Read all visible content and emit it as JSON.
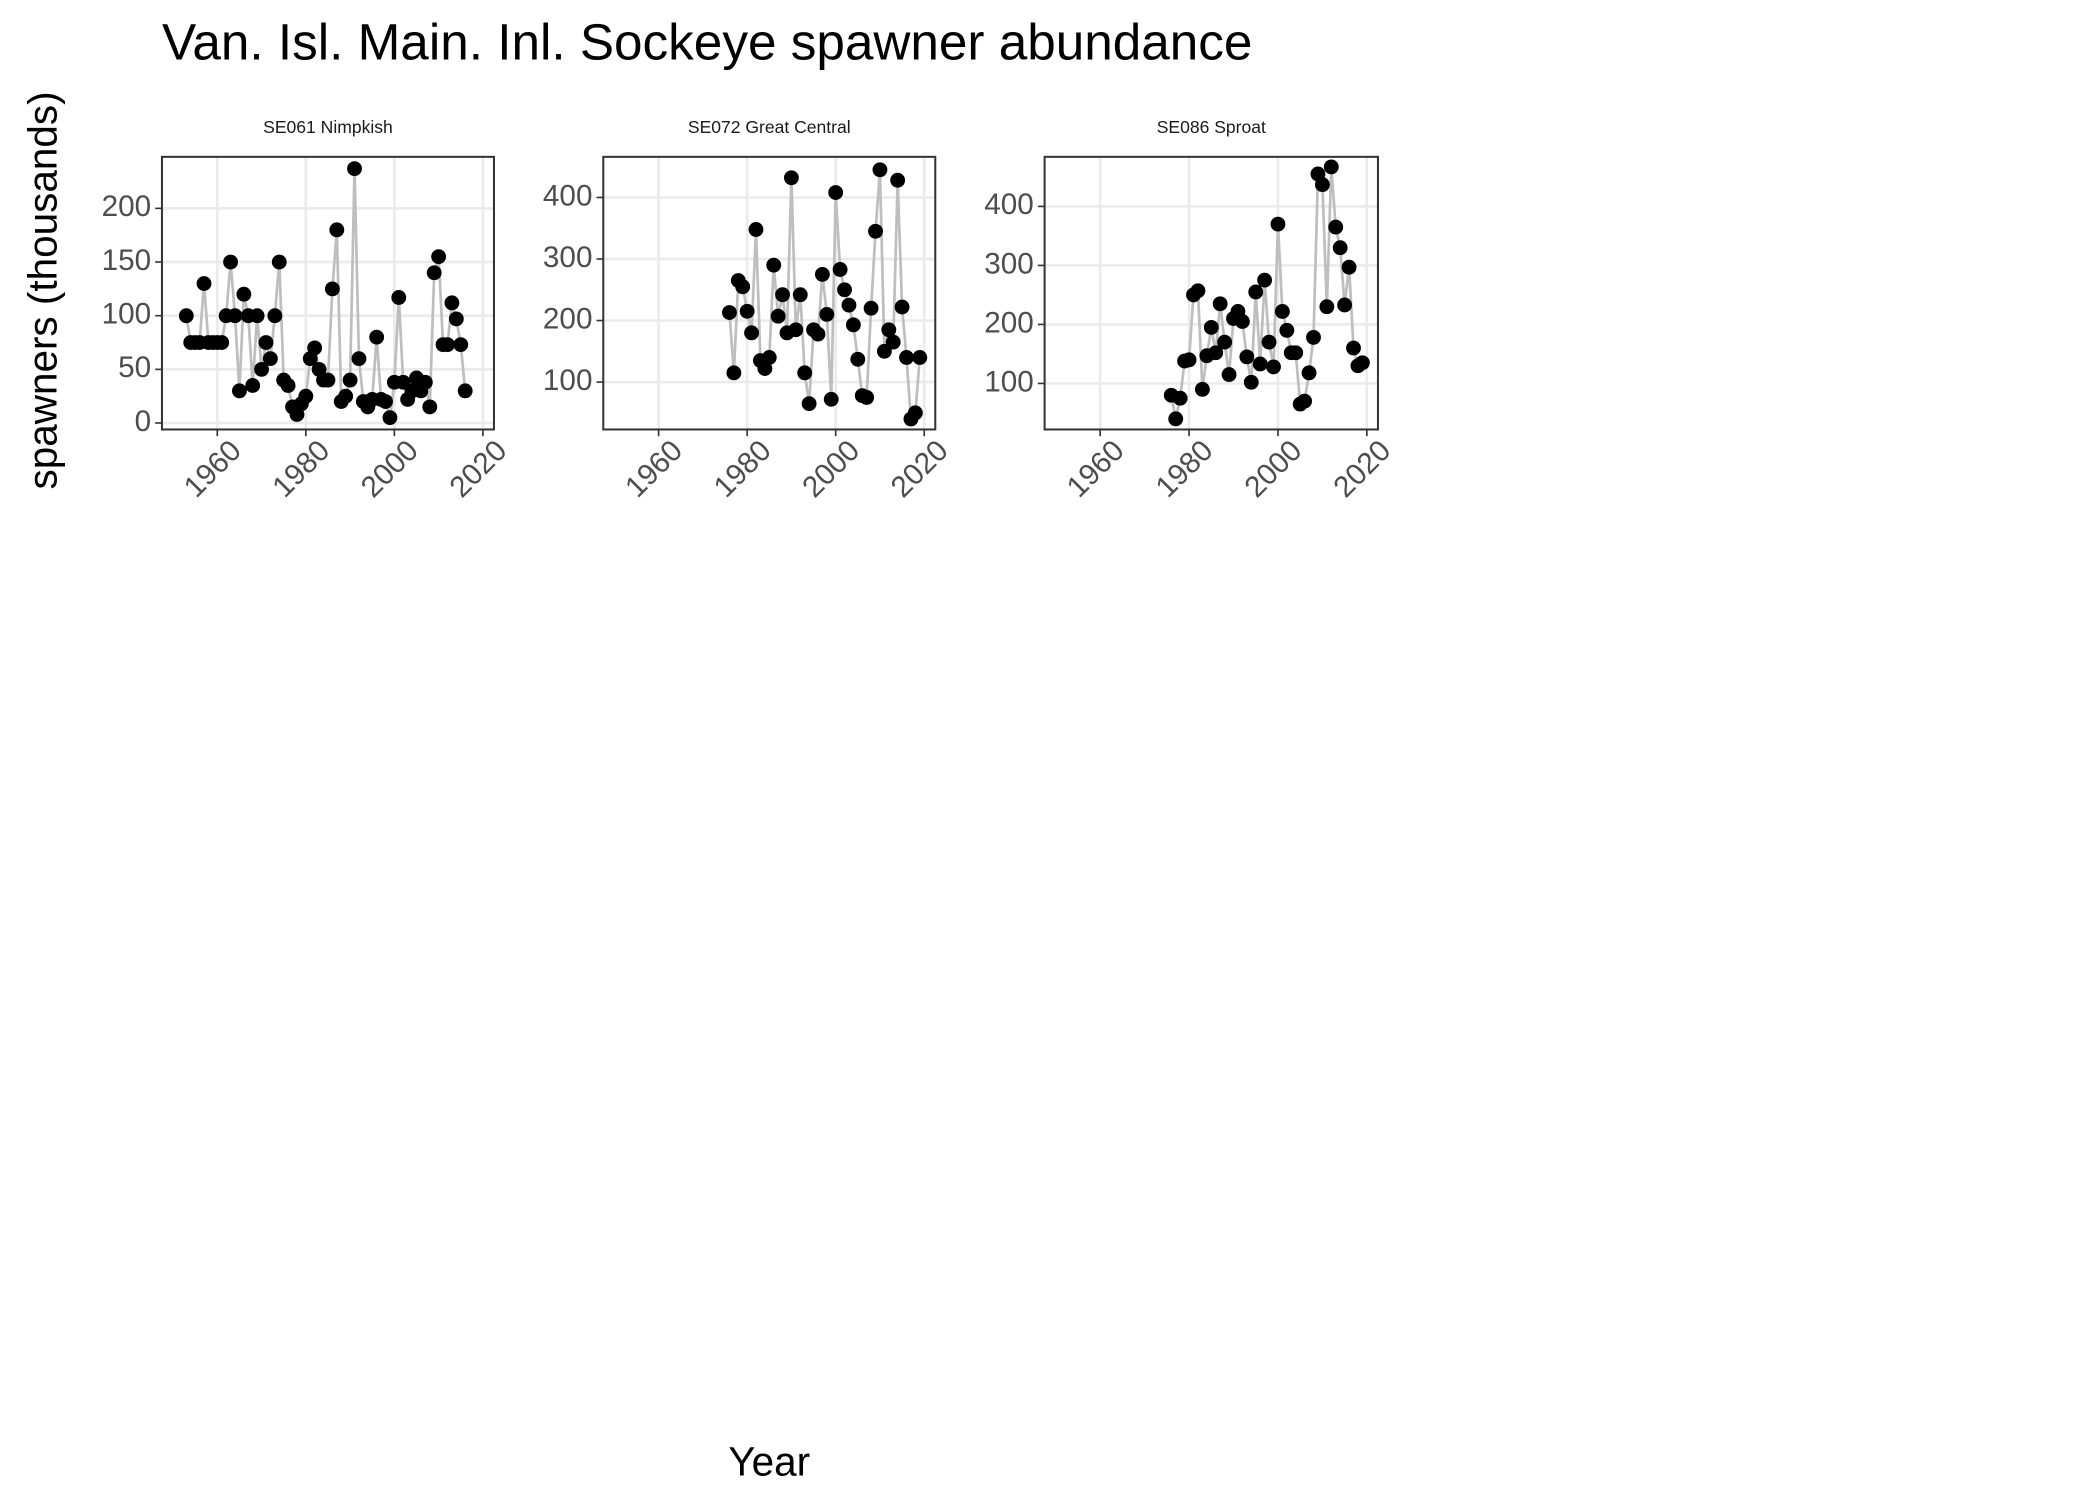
{
  "title": "Van. Isl. Main. Inl. Sockeye spawner abundance",
  "x_label": "Year",
  "y_label": "spawners (thousands)",
  "chart_data": [
    {
      "type": "line",
      "title": "SE061 Nimpkish",
      "color": "#000000",
      "line_color": "#bebebe",
      "grid": true,
      "xlim": [
        1947.5,
        2022.5
      ],
      "xticks": [
        1960,
        1980,
        2000,
        2020
      ],
      "ylim": [
        -6,
        248
      ],
      "yticks": [
        0,
        50,
        100,
        150,
        200
      ],
      "x": [
        1953,
        1954,
        1955,
        1956,
        1957,
        1958,
        1959,
        1960,
        1961,
        1962,
        1963,
        1964,
        1965,
        1966,
        1967,
        1968,
        1969,
        1970,
        1971,
        1972,
        1973,
        1974,
        1975,
        1976,
        1977,
        1978,
        1979,
        1980,
        1981,
        1982,
        1983,
        1984,
        1985,
        1986,
        1987,
        1988,
        1989,
        1990,
        1991,
        1992,
        1993,
        1994,
        1995,
        1996,
        1997,
        1998,
        1999,
        2000,
        2001,
        2002,
        2003,
        2004,
        2005,
        2006,
        2007,
        2008,
        2009,
        2010,
        2011,
        2012,
        2013,
        2014,
        2015,
        2016
      ],
      "values": [
        100,
        75,
        75,
        75,
        130,
        75,
        75,
        75,
        75,
        100,
        150,
        100,
        30,
        120,
        100,
        35,
        100,
        50,
        75,
        60,
        100,
        150,
        40,
        35,
        15,
        8,
        18,
        25,
        60,
        70,
        50,
        40,
        40,
        125,
        180,
        20,
        25,
        40,
        237,
        60,
        20,
        15,
        22,
        80,
        22,
        20,
        5,
        38,
        117,
        38,
        22,
        30,
        42,
        30,
        38,
        15,
        140,
        155,
        73,
        73,
        112,
        97,
        73,
        30
      ]
    },
    {
      "type": "line",
      "title": "SE072 Great Central",
      "color": "#000000",
      "line_color": "#bebebe",
      "grid": true,
      "xlim": [
        1947.5,
        2022.5
      ],
      "xticks": [
        1960,
        1980,
        2000,
        2020
      ],
      "ylim": [
        23,
        466
      ],
      "yticks": [
        100,
        200,
        300,
        400
      ],
      "x": [
        1976,
        1977,
        1978,
        1979,
        1980,
        1981,
        1982,
        1983,
        1984,
        1985,
        1986,
        1987,
        1988,
        1989,
        1990,
        1991,
        1992,
        1993,
        1994,
        1995,
        1996,
        1997,
        1998,
        1999,
        2000,
        2001,
        2002,
        2003,
        2004,
        2005,
        2006,
        2007,
        2008,
        2009,
        2010,
        2011,
        2012,
        2013,
        2014,
        2015,
        2016,
        2017,
        2018,
        2019
      ],
      "values": [
        213,
        115,
        265,
        255,
        215,
        180,
        348,
        135,
        122,
        140,
        290,
        207,
        242,
        180,
        432,
        185,
        242,
        115,
        65,
        185,
        178,
        275,
        210,
        72,
        408,
        283,
        250,
        225,
        193,
        137,
        78,
        75,
        220,
        345,
        445,
        150,
        185,
        165,
        428,
        222,
        140,
        40,
        50,
        140
      ]
    },
    {
      "type": "line",
      "title": "SE086 Sproat",
      "color": "#000000",
      "line_color": "#bebebe",
      "grid": true,
      "xlim": [
        1947.5,
        2022.5
      ],
      "xticks": [
        1960,
        1980,
        2000,
        2020
      ],
      "ylim": [
        22,
        484
      ],
      "yticks": [
        100,
        200,
        300,
        400
      ],
      "x": [
        1976,
        1977,
        1978,
        1979,
        1980,
        1981,
        1982,
        1983,
        1984,
        1985,
        1986,
        1987,
        1988,
        1989,
        1990,
        1991,
        1992,
        1993,
        1994,
        1995,
        1996,
        1997,
        1998,
        1999,
        2000,
        2001,
        2002,
        2003,
        2004,
        2005,
        2006,
        2007,
        2008,
        2009,
        2010,
        2011,
        2012,
        2013,
        2014,
        2015,
        2016,
        2017,
        2018,
        2019
      ],
      "values": [
        80,
        40,
        75,
        138,
        140,
        250,
        257,
        90,
        147,
        195,
        152,
        235,
        170,
        115,
        210,
        222,
        205,
        145,
        102,
        255,
        133,
        275,
        170,
        128,
        370,
        222,
        190,
        152,
        152,
        65,
        70,
        118,
        178,
        455,
        437,
        230,
        467,
        365,
        330,
        233,
        297,
        160,
        130,
        135
      ]
    }
  ]
}
